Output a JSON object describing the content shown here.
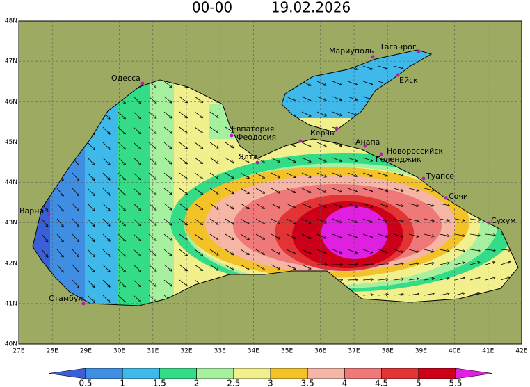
{
  "header": {
    "time": "00-00",
    "date": "19.02.2026"
  },
  "map": {
    "lat_labels": [
      "48N",
      "47N",
      "46N",
      "45N",
      "44N",
      "43N",
      "42N",
      "41N",
      "40N"
    ],
    "lon_labels": [
      "27E",
      "28E",
      "29E",
      "30E",
      "31E",
      "32E",
      "33E",
      "34E",
      "35E",
      "36E",
      "37E",
      "38E",
      "39E",
      "40E",
      "41E",
      "42E"
    ],
    "cities": [
      {
        "label": "Одесса"
      },
      {
        "label": "Евпатория"
      },
      {
        "label": "Феодосия"
      },
      {
        "label": "Керчь"
      },
      {
        "label": "Мариуполь"
      },
      {
        "label": "Таганрог"
      },
      {
        "label": "Ейск"
      },
      {
        "label": "Анапа"
      },
      {
        "label": "Новороссийск"
      },
      {
        "label": "Геленджик"
      },
      {
        "label": "Ялта"
      },
      {
        "label": "Туапсе"
      },
      {
        "label": "Сочи"
      },
      {
        "label": "Сухум"
      },
      {
        "label": "Варна"
      },
      {
        "label": "Стамбул"
      }
    ]
  },
  "legend": {
    "labels": [
      "0.5",
      "1",
      "1.5",
      "2",
      "2.5",
      "3",
      "3.5",
      "4",
      "4.5",
      "5",
      "5.5"
    ],
    "colors": [
      "#3a5fd6",
      "#3f8ee2",
      "#3fb8ea",
      "#35dc88",
      "#a6f0a0",
      "#f2f08c",
      "#f2c228",
      "#f5b6a6",
      "#ef7878",
      "#e23434",
      "#cc0018",
      "#e020e0"
    ]
  }
}
